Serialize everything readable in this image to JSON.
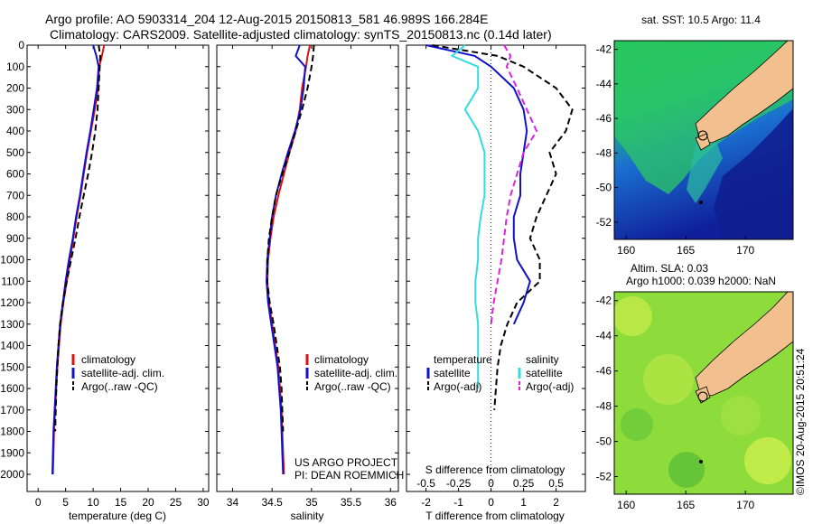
{
  "title": {
    "line1": "Argo profile: AO 5903314_204 12-Aug-2015 20150813_581 46.989S 166.284E",
    "line2": "Climatology: CARS2009. Satellite-adjusted climatology: synTS_20150813.nc (0.14d later)"
  },
  "credit": {
    "project": "US ARGO PROJECT",
    "pi": "PI: DEAN ROEMMICH",
    "imos": "©IMOS 20-Aug-2015 20:51:24"
  },
  "colors": {
    "climatology": "#dd1111",
    "satellite": "#1111cc",
    "argo": "#000000",
    "satellite_s": "#33dddd",
    "argo_s": "#dd22dd",
    "land": "#f2c08e"
  },
  "chart_data": [
    {
      "type": "line",
      "id": "temperature",
      "xlabel": "temperature (deg C)",
      "ylabel": "",
      "xlim": [
        -2,
        31
      ],
      "ylim": [
        0,
        2080
      ],
      "y_reversed": true,
      "xticks": [
        0,
        5,
        10,
        15,
        20,
        25,
        30
      ],
      "yticks": [
        0,
        100,
        200,
        300,
        400,
        500,
        600,
        700,
        800,
        900,
        1000,
        1100,
        1200,
        1300,
        1400,
        1500,
        1600,
        1700,
        1800,
        1900,
        2000
      ],
      "legend": [
        "climatology",
        "satellite-adj. clim.",
        "Argo(..raw -QC)"
      ],
      "series": [
        {
          "name": "climatology",
          "style": "solid",
          "color": "#dd1111",
          "x": [
            12.0,
            11.6,
            11.1,
            10.9,
            10.3,
            9.6,
            8.9,
            8.3,
            7.7,
            7.0,
            6.4,
            5.8,
            5.2,
            4.6,
            4.1,
            3.8,
            3.5,
            3.3,
            3.1,
            2.9,
            2.8,
            2.7
          ],
          "y": [
            0,
            50,
            100,
            200,
            300,
            400,
            500,
            600,
            700,
            800,
            900,
            1000,
            1100,
            1200,
            1300,
            1400,
            1500,
            1600,
            1700,
            1800,
            1900,
            2000
          ]
        },
        {
          "name": "satellite-adj. clim.",
          "style": "solid",
          "color": "#1111cc",
          "x": [
            10.0,
            10.6,
            11.0,
            10.7,
            10.1,
            9.5,
            8.8,
            8.2,
            7.6,
            6.9,
            6.3,
            5.6,
            5.0,
            4.5,
            4.0,
            3.7,
            3.4,
            3.2,
            3.0,
            2.8,
            2.7,
            2.6
          ],
          "y": [
            0,
            50,
            100,
            200,
            300,
            400,
            500,
            600,
            700,
            800,
            900,
            1000,
            1100,
            1200,
            1300,
            1400,
            1500,
            1600,
            1700,
            1800,
            1900,
            2000
          ]
        },
        {
          "name": "Argo(..raw -QC)",
          "style": "dashed",
          "color": "#000000",
          "x": [
            11.0,
            11.3,
            11.2,
            11.0,
            10.8,
            10.4,
            9.8,
            9.1,
            8.3,
            7.5,
            6.8,
            6.0,
            5.2,
            4.5,
            4.0,
            3.7,
            3.5,
            3.3,
            3.2,
            3.1
          ],
          "y": [
            0,
            50,
            100,
            200,
            300,
            400,
            500,
            600,
            700,
            800,
            900,
            1000,
            1100,
            1200,
            1300,
            1400,
            1500,
            1600,
            1700,
            1800
          ]
        }
      ]
    },
    {
      "type": "line",
      "id": "salinity",
      "xlabel": "salinity",
      "ylabel": "",
      "xlim": [
        33.8,
        36.1
      ],
      "ylim": [
        0,
        2080
      ],
      "y_reversed": true,
      "xticks": [
        34,
        34.5,
        35,
        35.5,
        36
      ],
      "legend": [
        "climatology",
        "satellite-adj. clim.",
        "Argo(..raw -QC)"
      ],
      "series": [
        {
          "name": "climatology",
          "style": "solid",
          "color": "#dd1111",
          "x": [
            34.98,
            34.95,
            34.93,
            34.88,
            34.85,
            34.8,
            34.72,
            34.65,
            34.58,
            34.52,
            34.48,
            34.45,
            34.44,
            34.46,
            34.5,
            34.54,
            34.58,
            34.6,
            34.62,
            34.63,
            34.64,
            34.65
          ],
          "y": [
            0,
            50,
            100,
            200,
            300,
            400,
            500,
            600,
            700,
            800,
            900,
            1000,
            1100,
            1200,
            1300,
            1400,
            1500,
            1600,
            1700,
            1800,
            1900,
            2000
          ]
        },
        {
          "name": "satellite-adj. clim.",
          "style": "solid",
          "color": "#1111cc",
          "x": [
            34.85,
            34.8,
            34.92,
            34.9,
            34.86,
            34.79,
            34.7,
            34.62,
            34.55,
            34.5,
            34.47,
            34.44,
            34.43,
            34.45,
            34.49,
            34.53,
            34.57,
            34.59,
            34.61,
            34.62,
            34.63,
            34.64
          ],
          "y": [
            0,
            50,
            100,
            200,
            300,
            400,
            500,
            600,
            700,
            800,
            900,
            1000,
            1100,
            1200,
            1300,
            1400,
            1500,
            1600,
            1700,
            1800,
            1900,
            2000
          ]
        },
        {
          "name": "Argo(..raw -QC)",
          "style": "dashed",
          "color": "#000000",
          "x": [
            35.03,
            35.02,
            35.0,
            34.95,
            34.88,
            34.8,
            34.72,
            34.63,
            34.55,
            34.5,
            34.46,
            34.44,
            34.44,
            34.47,
            34.52,
            34.56,
            34.6,
            34.62,
            34.63,
            34.64
          ],
          "y": [
            0,
            50,
            100,
            200,
            300,
            400,
            500,
            600,
            700,
            800,
            900,
            1000,
            1100,
            1200,
            1300,
            1400,
            1500,
            1600,
            1700,
            1800
          ]
        }
      ]
    },
    {
      "type": "line",
      "id": "difference",
      "xlabel": "T difference from climatology",
      "xlabel_top": "S difference from climatology",
      "ylabel": "",
      "xlim": [
        -2.6,
        2.9
      ],
      "ylim": [
        0,
        2080
      ],
      "y_reversed": true,
      "xticks": [
        -2,
        -1,
        0,
        1,
        2
      ],
      "xticks_s": [
        -0.5,
        -0.25,
        0,
        0.25,
        0.5
      ],
      "xticklabels_s": [
        "-0.5",
        "-0.25",
        "0",
        "0.25",
        "0.5"
      ],
      "legend_headers": [
        "temperature",
        "salinity"
      ],
      "legend": [
        "satellite",
        "Argo(-adj)",
        "satellite",
        "Argo(-adj)"
      ],
      "series": [
        {
          "name": "satellite",
          "group": "temperature",
          "style": "solid",
          "color": "#1111cc",
          "x": [
            -2.0,
            -0.5,
            0.0,
            0.7,
            1.0,
            1.1,
            1.0,
            0.9,
            0.9,
            0.7,
            0.7,
            0.8,
            1.2,
            1.0,
            0.7
          ],
          "y": [
            0,
            50,
            100,
            200,
            300,
            400,
            500,
            600,
            700,
            800,
            900,
            1000,
            1100,
            1200,
            1300
          ]
        },
        {
          "name": "Argo(-adj)",
          "group": "temperature",
          "style": "dashed",
          "color": "#000000",
          "x": [
            -1.8,
            0.2,
            1.0,
            2.0,
            2.5,
            2.3,
            1.8,
            2.0,
            1.7,
            1.4,
            1.2,
            1.5,
            1.5,
            0.8,
            0.5,
            0.3,
            0.2,
            0.1
          ],
          "y": [
            0,
            50,
            100,
            200,
            300,
            400,
            500,
            600,
            700,
            800,
            900,
            1000,
            1100,
            1200,
            1300,
            1400,
            1500,
            1700
          ]
        },
        {
          "name": "satellite",
          "group": "salinity",
          "style": "solid",
          "color": "#33dddd",
          "x": [
            -0.2,
            -0.3,
            -0.1,
            -0.1,
            -0.2,
            -0.1,
            -0.05,
            -0.05,
            -0.05,
            -0.08,
            -0.1,
            -0.1,
            -0.12,
            -0.12,
            -0.1,
            -0.1,
            -0.1
          ],
          "y": [
            0,
            50,
            100,
            200,
            300,
            400,
            500,
            600,
            700,
            800,
            900,
            1000,
            1100,
            1200,
            1300,
            1400,
            1600
          ]
        },
        {
          "name": "Argo(-adj)",
          "group": "salinity",
          "style": "dashed",
          "color": "#dd22dd",
          "x": [
            0.1,
            0.15,
            0.12,
            0.2,
            0.35,
            0.25,
            0.2,
            0.15,
            0.12,
            0.1,
            0.08,
            0.05,
            0.02,
            0.0
          ],
          "y": [
            0,
            50,
            100,
            200,
            400,
            500,
            600,
            700,
            800,
            900,
            1000,
            1100,
            1200,
            1300
          ]
        }
      ]
    },
    {
      "type": "heatmap",
      "id": "sst_map",
      "title": "sat. SST: 10.5 Argo: 11.4",
      "xlim": [
        159,
        174
      ],
      "ylim": [
        -53,
        -41.5
      ],
      "xticks": [
        160,
        165,
        170
      ],
      "yticks": [
        -42,
        -44,
        -46,
        -48,
        -50,
        -52
      ],
      "marker": {
        "lon": 166.284,
        "lat": -46.989
      }
    },
    {
      "type": "heatmap",
      "id": "sla_map",
      "title": "Altim. SLA: 0.03",
      "subtitle": "Argo h1000: 0.039 h2000: NaN",
      "xlim": [
        159,
        174
      ],
      "ylim": [
        -53,
        -41.5
      ],
      "xticks": [
        160,
        165,
        170
      ],
      "yticks": [
        -42,
        -44,
        -46,
        -48,
        -50,
        -52
      ],
      "marker": {
        "lon": 166.284,
        "lat": -46.989
      }
    }
  ]
}
